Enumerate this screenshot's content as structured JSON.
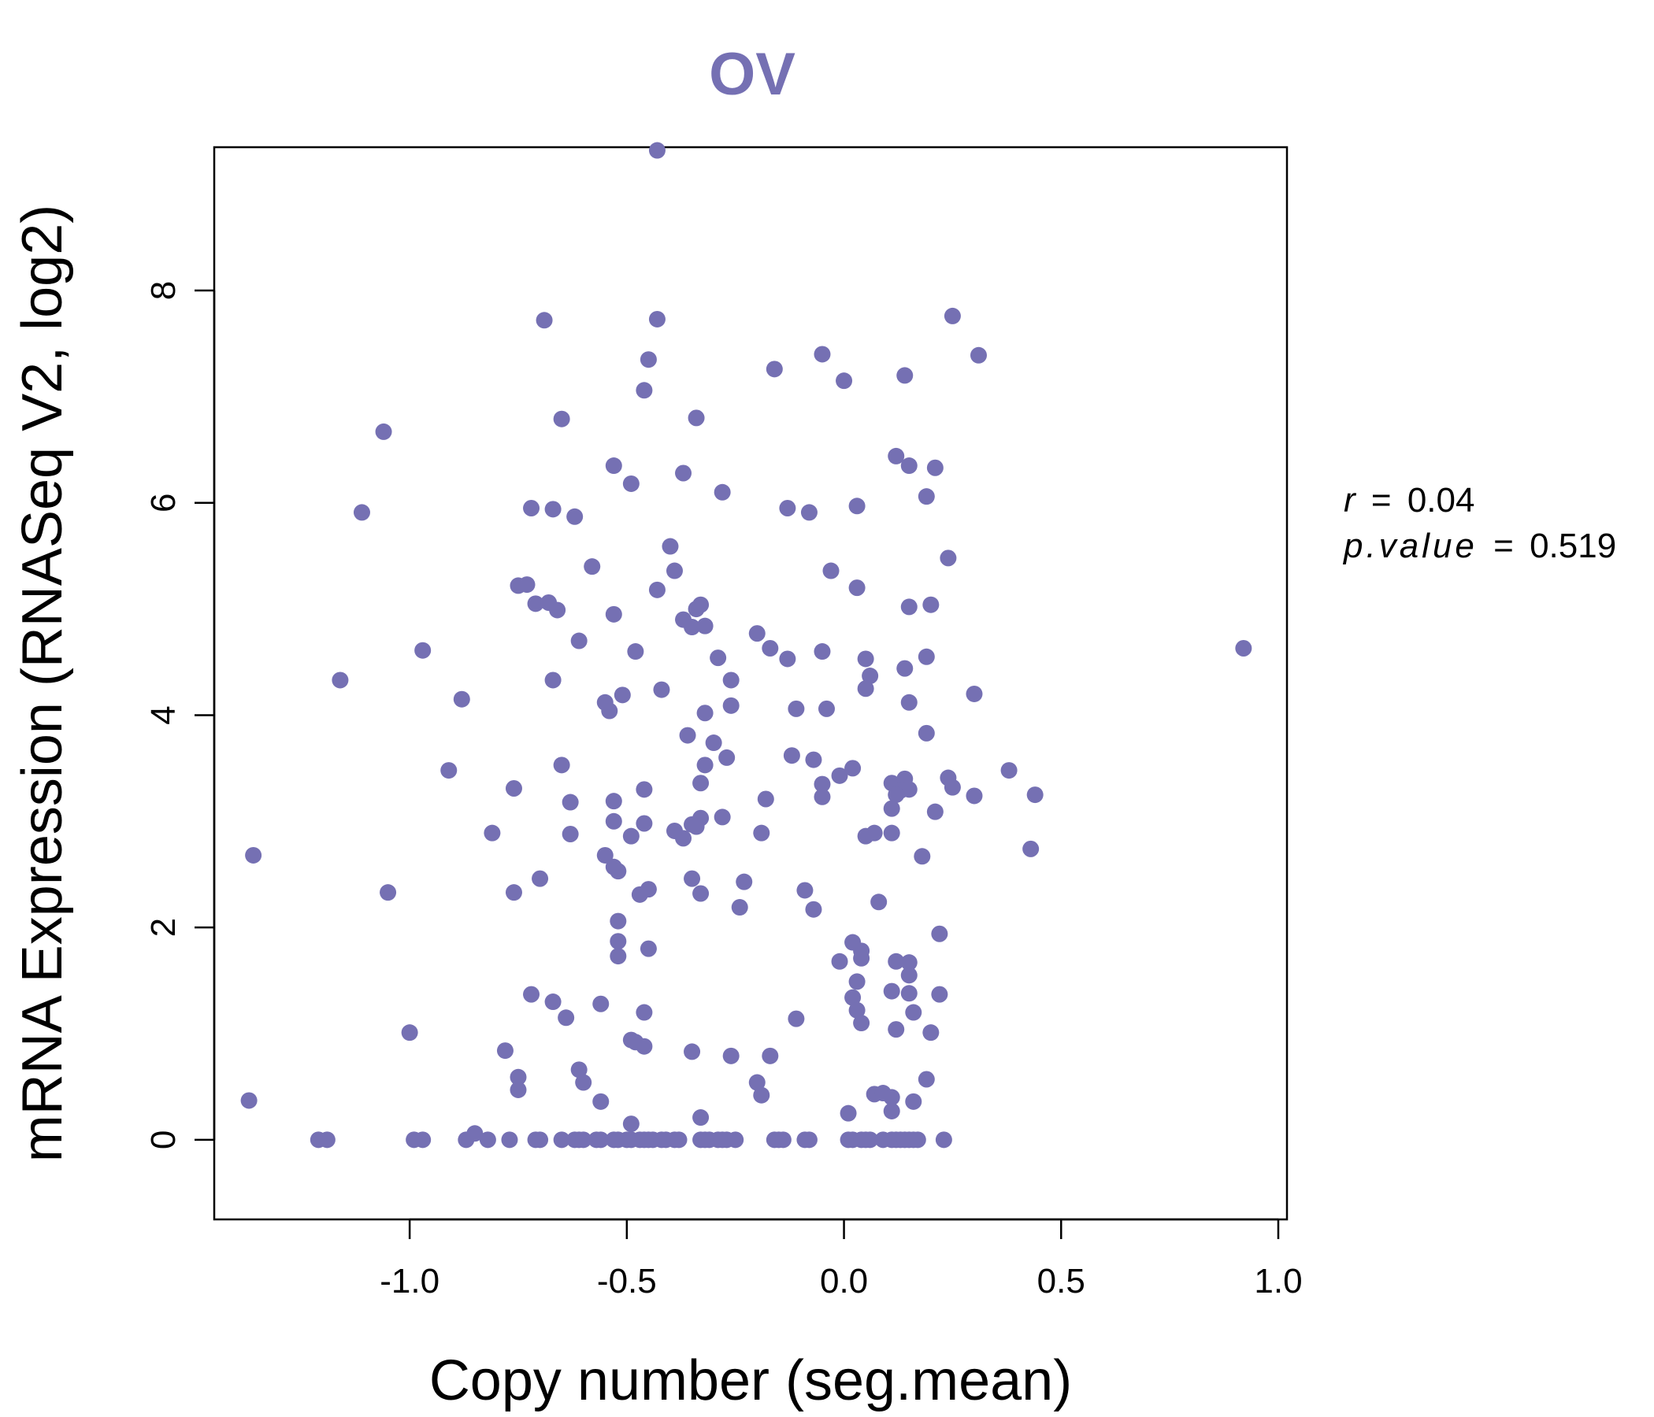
{
  "chart_data": {
    "type": "scatter",
    "title": "OV",
    "xlabel": "Copy number (seg.mean)",
    "ylabel": "mRNA Expression (RNASeq V2, log2)",
    "xlim": [
      -1.45,
      1.02
    ],
    "ylim": [
      -0.75,
      9.35
    ],
    "xticks": [
      -1.0,
      -0.5,
      0.0,
      0.5,
      1.0
    ],
    "xtick_labels": [
      "-1.0",
      "-0.5",
      "0.0",
      "0.5",
      "1.0"
    ],
    "yticks": [
      0,
      2,
      4,
      6,
      8
    ],
    "ytick_labels": [
      "0",
      "2",
      "4",
      "6",
      "8"
    ],
    "grid": false,
    "color": "#7570b3",
    "stats": {
      "r_label": "r",
      "r_value": "0.04",
      "p_label": "p.value",
      "p_value": "0.519",
      "equals": "="
    },
    "points": [
      [
        -0.43,
        9.32
      ],
      [
        -0.69,
        7.72
      ],
      [
        -0.43,
        7.73
      ],
      [
        0.25,
        7.76
      ],
      [
        -0.45,
        7.35
      ],
      [
        -0.05,
        7.4
      ],
      [
        0.31,
        7.39
      ],
      [
        -0.16,
        7.26
      ],
      [
        0.0,
        7.15
      ],
      [
        0.14,
        7.2
      ],
      [
        -0.46,
        7.06
      ],
      [
        -1.06,
        6.67
      ],
      [
        -0.65,
        6.79
      ],
      [
        -0.34,
        6.8
      ],
      [
        0.12,
        6.44
      ],
      [
        -0.53,
        6.35
      ],
      [
        0.15,
        6.35
      ],
      [
        0.21,
        6.33
      ],
      [
        -0.37,
        6.28
      ],
      [
        -0.49,
        6.18
      ],
      [
        -0.28,
        6.1
      ],
      [
        0.19,
        6.06
      ],
      [
        -1.11,
        5.91
      ],
      [
        -0.72,
        5.95
      ],
      [
        -0.67,
        5.94
      ],
      [
        -0.62,
        5.87
      ],
      [
        -0.13,
        5.95
      ],
      [
        -0.08,
        5.91
      ],
      [
        0.03,
        5.97
      ],
      [
        -0.4,
        5.59
      ],
      [
        0.24,
        5.48
      ],
      [
        -0.58,
        5.4
      ],
      [
        -0.39,
        5.36
      ],
      [
        -0.03,
        5.36
      ],
      [
        -0.75,
        5.22
      ],
      [
        -0.73,
        5.23
      ],
      [
        -0.43,
        5.18
      ],
      [
        0.03,
        5.2
      ],
      [
        -0.71,
        5.05
      ],
      [
        -0.68,
        5.06
      ],
      [
        -0.66,
        4.99
      ],
      [
        -0.53,
        4.95
      ],
      [
        -0.34,
        5.0
      ],
      [
        -0.33,
        5.04
      ],
      [
        0.15,
        5.02
      ],
      [
        0.2,
        5.04
      ],
      [
        -0.37,
        4.9
      ],
      [
        -0.35,
        4.83
      ],
      [
        -0.32,
        4.84
      ],
      [
        -0.61,
        4.7
      ],
      [
        -0.2,
        4.77
      ],
      [
        -0.97,
        4.61
      ],
      [
        -0.48,
        4.6
      ],
      [
        -0.17,
        4.63
      ],
      [
        -0.13,
        4.53
      ],
      [
        -0.05,
        4.6
      ],
      [
        0.05,
        4.53
      ],
      [
        0.19,
        4.55
      ],
      [
        0.92,
        4.63
      ],
      [
        -1.16,
        4.33
      ],
      [
        -0.67,
        4.33
      ],
      [
        -0.29,
        4.54
      ],
      [
        -0.26,
        4.33
      ],
      [
        0.06,
        4.37
      ],
      [
        0.14,
        4.44
      ],
      [
        -0.42,
        4.24
      ],
      [
        0.05,
        4.25
      ],
      [
        0.3,
        4.2
      ],
      [
        -0.88,
        4.15
      ],
      [
        -0.55,
        4.12
      ],
      [
        -0.51,
        4.19
      ],
      [
        -0.26,
        4.09
      ],
      [
        -0.54,
        4.04
      ],
      [
        -0.32,
        4.02
      ],
      [
        -0.11,
        4.06
      ],
      [
        -0.04,
        4.06
      ],
      [
        0.15,
        4.12
      ],
      [
        0.19,
        3.83
      ],
      [
        -0.36,
        3.81
      ],
      [
        -0.3,
        3.74
      ],
      [
        -0.12,
        3.62
      ],
      [
        -0.27,
        3.6
      ],
      [
        -0.65,
        3.53
      ],
      [
        -0.32,
        3.53
      ],
      [
        -0.07,
        3.58
      ],
      [
        -0.91,
        3.48
      ],
      [
        -0.01,
        3.43
      ],
      [
        0.02,
        3.5
      ],
      [
        0.38,
        3.48
      ],
      [
        -0.33,
        3.36
      ],
      [
        -0.05,
        3.35
      ],
      [
        0.11,
        3.36
      ],
      [
        0.14,
        3.4
      ],
      [
        0.24,
        3.41
      ],
      [
        -0.76,
        3.31
      ],
      [
        -0.46,
        3.3
      ],
      [
        0.13,
        3.29
      ],
      [
        0.15,
        3.3
      ],
      [
        0.25,
        3.32
      ],
      [
        -0.63,
        3.18
      ],
      [
        -0.53,
        3.19
      ],
      [
        -0.18,
        3.21
      ],
      [
        -0.05,
        3.23
      ],
      [
        0.12,
        3.25
      ],
      [
        0.3,
        3.24
      ],
      [
        0.44,
        3.25
      ],
      [
        0.11,
        3.12
      ],
      [
        0.21,
        3.09
      ],
      [
        -0.33,
        3.03
      ],
      [
        -0.28,
        3.04
      ],
      [
        -0.53,
        3.0
      ],
      [
        -0.46,
        2.98
      ],
      [
        -0.35,
        2.97
      ],
      [
        -0.34,
        2.95
      ],
      [
        -0.81,
        2.89
      ],
      [
        -0.63,
        2.88
      ],
      [
        -0.49,
        2.86
      ],
      [
        -0.39,
        2.91
      ],
      [
        -0.37,
        2.84
      ],
      [
        -0.19,
        2.89
      ],
      [
        0.05,
        2.86
      ],
      [
        0.07,
        2.89
      ],
      [
        0.11,
        2.89
      ],
      [
        -1.36,
        2.68
      ],
      [
        -0.55,
        2.68
      ],
      [
        -0.53,
        2.57
      ],
      [
        -0.52,
        2.53
      ],
      [
        0.18,
        2.67
      ],
      [
        0.43,
        2.74
      ],
      [
        -0.7,
        2.46
      ],
      [
        -0.35,
        2.46
      ],
      [
        -0.23,
        2.43
      ],
      [
        -1.05,
        2.33
      ],
      [
        -0.76,
        2.33
      ],
      [
        -0.47,
        2.31
      ],
      [
        -0.45,
        2.36
      ],
      [
        -0.33,
        2.32
      ],
      [
        -0.09,
        2.35
      ],
      [
        0.08,
        2.24
      ],
      [
        -0.24,
        2.19
      ],
      [
        -0.07,
        2.17
      ],
      [
        -0.52,
        2.06
      ],
      [
        0.22,
        1.94
      ],
      [
        -0.52,
        1.87
      ],
      [
        0.02,
        1.86
      ],
      [
        -0.45,
        1.8
      ],
      [
        0.04,
        1.78
      ],
      [
        -0.52,
        1.73
      ],
      [
        0.04,
        1.71
      ],
      [
        -0.01,
        1.68
      ],
      [
        0.12,
        1.68
      ],
      [
        0.15,
        1.67
      ],
      [
        0.15,
        1.55
      ],
      [
        0.03,
        1.49
      ],
      [
        -0.72,
        1.37
      ],
      [
        -0.67,
        1.3
      ],
      [
        -0.56,
        1.28
      ],
      [
        0.11,
        1.4
      ],
      [
        0.15,
        1.38
      ],
      [
        0.22,
        1.37
      ],
      [
        0.02,
        1.34
      ],
      [
        -0.46,
        1.2
      ],
      [
        0.03,
        1.22
      ],
      [
        -0.64,
        1.15
      ],
      [
        -0.11,
        1.14
      ],
      [
        0.04,
        1.1
      ],
      [
        0.16,
        1.2
      ],
      [
        -1.0,
        1.01
      ],
      [
        0.12,
        1.04
      ],
      [
        0.2,
        1.01
      ],
      [
        -0.49,
        0.94
      ],
      [
        -0.48,
        0.92
      ],
      [
        -0.46,
        0.88
      ],
      [
        -0.78,
        0.84
      ],
      [
        -0.35,
        0.83
      ],
      [
        -0.26,
        0.79
      ],
      [
        -0.17,
        0.79
      ],
      [
        -0.61,
        0.66
      ],
      [
        -0.75,
        0.59
      ],
      [
        -0.6,
        0.54
      ],
      [
        -0.2,
        0.54
      ],
      [
        0.19,
        0.57
      ],
      [
        -0.75,
        0.47
      ],
      [
        -0.19,
        0.42
      ],
      [
        0.07,
        0.43
      ],
      [
        0.09,
        0.44
      ],
      [
        0.11,
        0.4
      ],
      [
        -1.37,
        0.37
      ],
      [
        -0.56,
        0.36
      ],
      [
        0.16,
        0.36
      ],
      [
        0.01,
        0.25
      ],
      [
        0.11,
        0.27
      ],
      [
        -0.33,
        0.21
      ],
      [
        -0.49,
        0.15
      ],
      [
        -0.85,
        0.06
      ],
      [
        -0.87,
        0.0
      ],
      [
        -1.19,
        0.0
      ],
      [
        -1.21,
        0.0
      ],
      [
        -0.99,
        0.0
      ],
      [
        -0.97,
        0.0
      ],
      [
        -0.82,
        0.0
      ],
      [
        -0.77,
        0.0
      ],
      [
        -0.71,
        0.0
      ],
      [
        -0.7,
        0.0
      ],
      [
        -0.65,
        0.0
      ],
      [
        -0.62,
        0.0
      ],
      [
        -0.61,
        0.0
      ],
      [
        -0.6,
        0.0
      ],
      [
        -0.57,
        0.0
      ],
      [
        -0.56,
        0.0
      ],
      [
        -0.53,
        0.0
      ],
      [
        -0.52,
        0.0
      ],
      [
        -0.5,
        0.0
      ],
      [
        -0.49,
        0.0
      ],
      [
        -0.47,
        0.0
      ],
      [
        -0.46,
        0.0
      ],
      [
        -0.45,
        0.0
      ],
      [
        -0.44,
        0.0
      ],
      [
        -0.42,
        0.0
      ],
      [
        -0.41,
        0.0
      ],
      [
        -0.39,
        0.0
      ],
      [
        -0.38,
        0.0
      ],
      [
        -0.33,
        0.0
      ],
      [
        -0.32,
        0.0
      ],
      [
        -0.31,
        0.0
      ],
      [
        -0.29,
        0.0
      ],
      [
        -0.28,
        0.0
      ],
      [
        -0.27,
        0.0
      ],
      [
        -0.25,
        0.0
      ],
      [
        -0.16,
        0.0
      ],
      [
        -0.15,
        0.0
      ],
      [
        -0.14,
        0.0
      ],
      [
        -0.09,
        0.0
      ],
      [
        -0.08,
        0.0
      ],
      [
        0.01,
        0.0
      ],
      [
        0.02,
        0.0
      ],
      [
        0.04,
        0.0
      ],
      [
        0.05,
        0.0
      ],
      [
        0.06,
        0.0
      ],
      [
        0.09,
        0.0
      ],
      [
        0.11,
        0.0
      ],
      [
        0.12,
        0.0
      ],
      [
        0.13,
        0.0
      ],
      [
        0.14,
        0.0
      ],
      [
        0.15,
        0.0
      ],
      [
        0.16,
        0.0
      ],
      [
        0.17,
        0.0
      ],
      [
        0.23,
        0.0
      ]
    ]
  }
}
